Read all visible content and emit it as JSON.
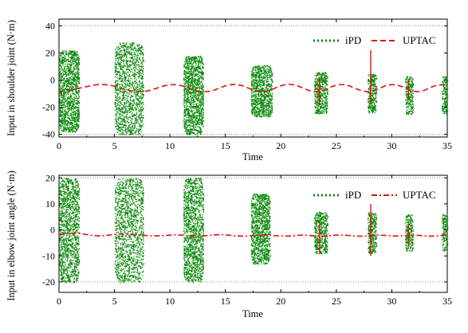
{
  "colors": {
    "ipd": "#0b8a0b",
    "uptac": "#e01010",
    "axis": "#000000",
    "ref": "#888888"
  },
  "chart_data": [
    {
      "type": "scatter",
      "xlabel": "Time",
      "ylabel": "Input in shoulder joint (N·m)",
      "xlim": [
        0,
        35
      ],
      "ylim": [
        -42,
        45
      ],
      "xticks": [
        "0",
        "5",
        "10",
        "15",
        "20",
        "25",
        "30",
        "35"
      ],
      "yticks": [
        "-40",
        "-20",
        "0",
        "20",
        "40"
      ],
      "ref_lines": [
        40,
        -40
      ],
      "legend": {
        "position": "top-right",
        "entries": [
          "iPD",
          "UPTAC"
        ]
      },
      "series": [
        {
          "name": "iPD",
          "style": "dense green dots (bursts)",
          "bursts": [
            {
              "x": [
                0.0,
                1.8
              ],
              "y": [
                -38,
                22
              ]
            },
            {
              "x": [
                5.0,
                7.6
              ],
              "y": [
                -40,
                28
              ]
            },
            {
              "x": [
                11.2,
                13.0
              ],
              "y": [
                -40,
                18
              ]
            },
            {
              "x": [
                17.3,
                19.2
              ],
              "y": [
                -27,
                11
              ]
            },
            {
              "x": [
                23.0,
                24.2
              ],
              "y": [
                -25,
                6
              ]
            },
            {
              "x": [
                27.8,
                28.6
              ],
              "y": [
                -24,
                5
              ]
            },
            {
              "x": [
                31.2,
                31.9
              ],
              "y": [
                -25,
                3
              ]
            },
            {
              "x": [
                34.5,
                35.0
              ],
              "y": [
                -25,
                3
              ]
            }
          ]
        },
        {
          "name": "UPTAC",
          "style": "red dashed line",
          "x": [
            0.0,
            0.5,
            1.0,
            1.5,
            2.0,
            2.5,
            3.0,
            3.5,
            4.0,
            4.5,
            5.0,
            5.5,
            6.0,
            6.5,
            7.0,
            7.5,
            8.0,
            8.5,
            9.0,
            9.5,
            10.0,
            10.5,
            11.0,
            11.5,
            12.0,
            12.5,
            13.0,
            13.5,
            14.0,
            14.5,
            15.0,
            15.5,
            16.0,
            16.5,
            17.0,
            17.5,
            18.0,
            18.5,
            19.0,
            19.5,
            20.0,
            20.5,
            21.0,
            21.5,
            22.0,
            22.5,
            23.0,
            23.5,
            24.0,
            24.5,
            25.0,
            25.5,
            26.0,
            26.5,
            27.0,
            27.5,
            28.0,
            28.5,
            29.0,
            29.5,
            30.0,
            30.5,
            31.0,
            31.5,
            32.0,
            32.5,
            33.0,
            33.5,
            34.0,
            34.5,
            35.0
          ],
          "y": [
            -9.0,
            -8.2,
            -7.3,
            -6.5,
            -5.7,
            -4.8,
            -3.9,
            -3.3,
            -3.2,
            -3.6,
            -4.6,
            -5.8,
            -7.0,
            -8.0,
            -8.5,
            -8.5,
            -8.0,
            -6.8,
            -5.5,
            -4.2,
            -3.4,
            -3.4,
            -4.0,
            -5.2,
            -6.7,
            -8.0,
            -8.6,
            -8.4,
            -7.4,
            -5.8,
            -4.2,
            -3.3,
            -3.2,
            -4.0,
            -5.6,
            -7.3,
            -8.5,
            -8.6,
            -7.6,
            -5.8,
            -4.2,
            -3.2,
            -3.2,
            -4.2,
            -5.9,
            -7.6,
            -8.6,
            -8.4,
            -7.0,
            -5.2,
            -3.7,
            -3.2,
            -3.8,
            -5.3,
            -7.1,
            -8.3,
            -8.5,
            -7.4,
            -5.6,
            -4.0,
            -3.3,
            -3.6,
            -5.0,
            -6.9,
            -8.3,
            -8.5,
            -7.3,
            -5.4,
            -3.9,
            -3.4,
            -4.0
          ],
          "spikes": [
            {
              "x": 23.5,
              "y": [
                -18,
                2
              ]
            },
            {
              "x": 28.1,
              "y": [
                -17,
                22
              ]
            },
            {
              "x": 31.5,
              "y": [
                -14,
                0
              ]
            }
          ]
        }
      ]
    },
    {
      "type": "scatter",
      "xlabel": "Time",
      "ylabel": "Input in elbow joint angle (N·m)",
      "xlim": [
        0,
        35
      ],
      "ylim": [
        -24,
        21
      ],
      "xticks": [
        "0",
        "5",
        "10",
        "15",
        "20",
        "25",
        "30",
        "35"
      ],
      "yticks": [
        "-20",
        "-10",
        "0",
        "10",
        "20"
      ],
      "ref_lines": [
        20,
        -20
      ],
      "legend": {
        "position": "top-right",
        "entries": [
          "iPD",
          "UPTAC"
        ]
      },
      "series": [
        {
          "name": "iPD",
          "style": "dense green dots (bursts)",
          "bursts": [
            {
              "x": [
                0.0,
                1.8
              ],
              "y": [
                -20,
                20
              ]
            },
            {
              "x": [
                5.0,
                7.6
              ],
              "y": [
                -20,
                20
              ]
            },
            {
              "x": [
                11.2,
                13.0
              ],
              "y": [
                -20,
                20
              ]
            },
            {
              "x": [
                17.3,
                19.0
              ],
              "y": [
                -13,
                14
              ]
            },
            {
              "x": [
                23.0,
                24.2
              ],
              "y": [
                -9,
                7
              ]
            },
            {
              "x": [
                27.8,
                28.6
              ],
              "y": [
                -9,
                7
              ]
            },
            {
              "x": [
                31.2,
                31.9
              ],
              "y": [
                -8,
                6
              ]
            },
            {
              "x": [
                34.5,
                35.0
              ],
              "y": [
                -8,
                6
              ]
            }
          ]
        },
        {
          "name": "UPTAC",
          "style": "red dash-dot line",
          "x": [
            0.0,
            0.5,
            1.0,
            1.5,
            2.0,
            2.5,
            3.0,
            3.5,
            4.0,
            4.5,
            5.0,
            5.5,
            6.0,
            6.5,
            7.0,
            7.5,
            8.0,
            8.5,
            9.0,
            9.5,
            10.0,
            10.5,
            11.0,
            11.5,
            12.0,
            12.5,
            13.0,
            13.5,
            14.0,
            14.5,
            15.0,
            15.5,
            16.0,
            16.5,
            17.0,
            17.5,
            18.0,
            18.5,
            19.0,
            19.5,
            20.0,
            20.5,
            21.0,
            21.5,
            22.0,
            22.5,
            23.0,
            23.5,
            24.0,
            24.5,
            25.0,
            25.5,
            26.0,
            26.5,
            27.0,
            27.5,
            28.0,
            28.5,
            29.0,
            29.5,
            30.0,
            30.5,
            31.0,
            31.5,
            32.0,
            32.5,
            33.0,
            33.5,
            34.0,
            34.5,
            35.0
          ],
          "y": [
            -2.0,
            -1.6,
            -1.3,
            -1.2,
            -1.4,
            -1.8,
            -2.1,
            -2.3,
            -2.2,
            -2.0,
            -1.7,
            -1.6,
            -1.6,
            -1.7,
            -1.9,
            -2.0,
            -2.2,
            -2.3,
            -2.3,
            -2.2,
            -2.0,
            -1.9,
            -2.0,
            -2.2,
            -2.3,
            -2.4,
            -2.3,
            -2.1,
            -1.9,
            -1.8,
            -1.9,
            -2.1,
            -2.3,
            -2.4,
            -2.4,
            -2.2,
            -2.0,
            -1.9,
            -2.0,
            -2.2,
            -2.3,
            -2.4,
            -2.3,
            -2.1,
            -2.0,
            -2.1,
            -2.3,
            -2.4,
            -2.4,
            -2.2,
            -2.0,
            -2.0,
            -2.1,
            -2.3,
            -2.4,
            -2.4,
            -2.2,
            -2.0,
            -2.0,
            -2.1,
            -2.3,
            -2.4,
            -2.3,
            -2.1,
            -2.0,
            -2.1,
            -2.3,
            -2.4,
            -2.3,
            -2.1,
            -2.0
          ],
          "spikes": [
            {
              "x": 23.5,
              "y": [
                -9,
                3
              ]
            },
            {
              "x": 28.1,
              "y": [
                -10,
                10
              ]
            },
            {
              "x": 31.5,
              "y": [
                -6,
                2
              ]
            }
          ]
        }
      ]
    }
  ]
}
